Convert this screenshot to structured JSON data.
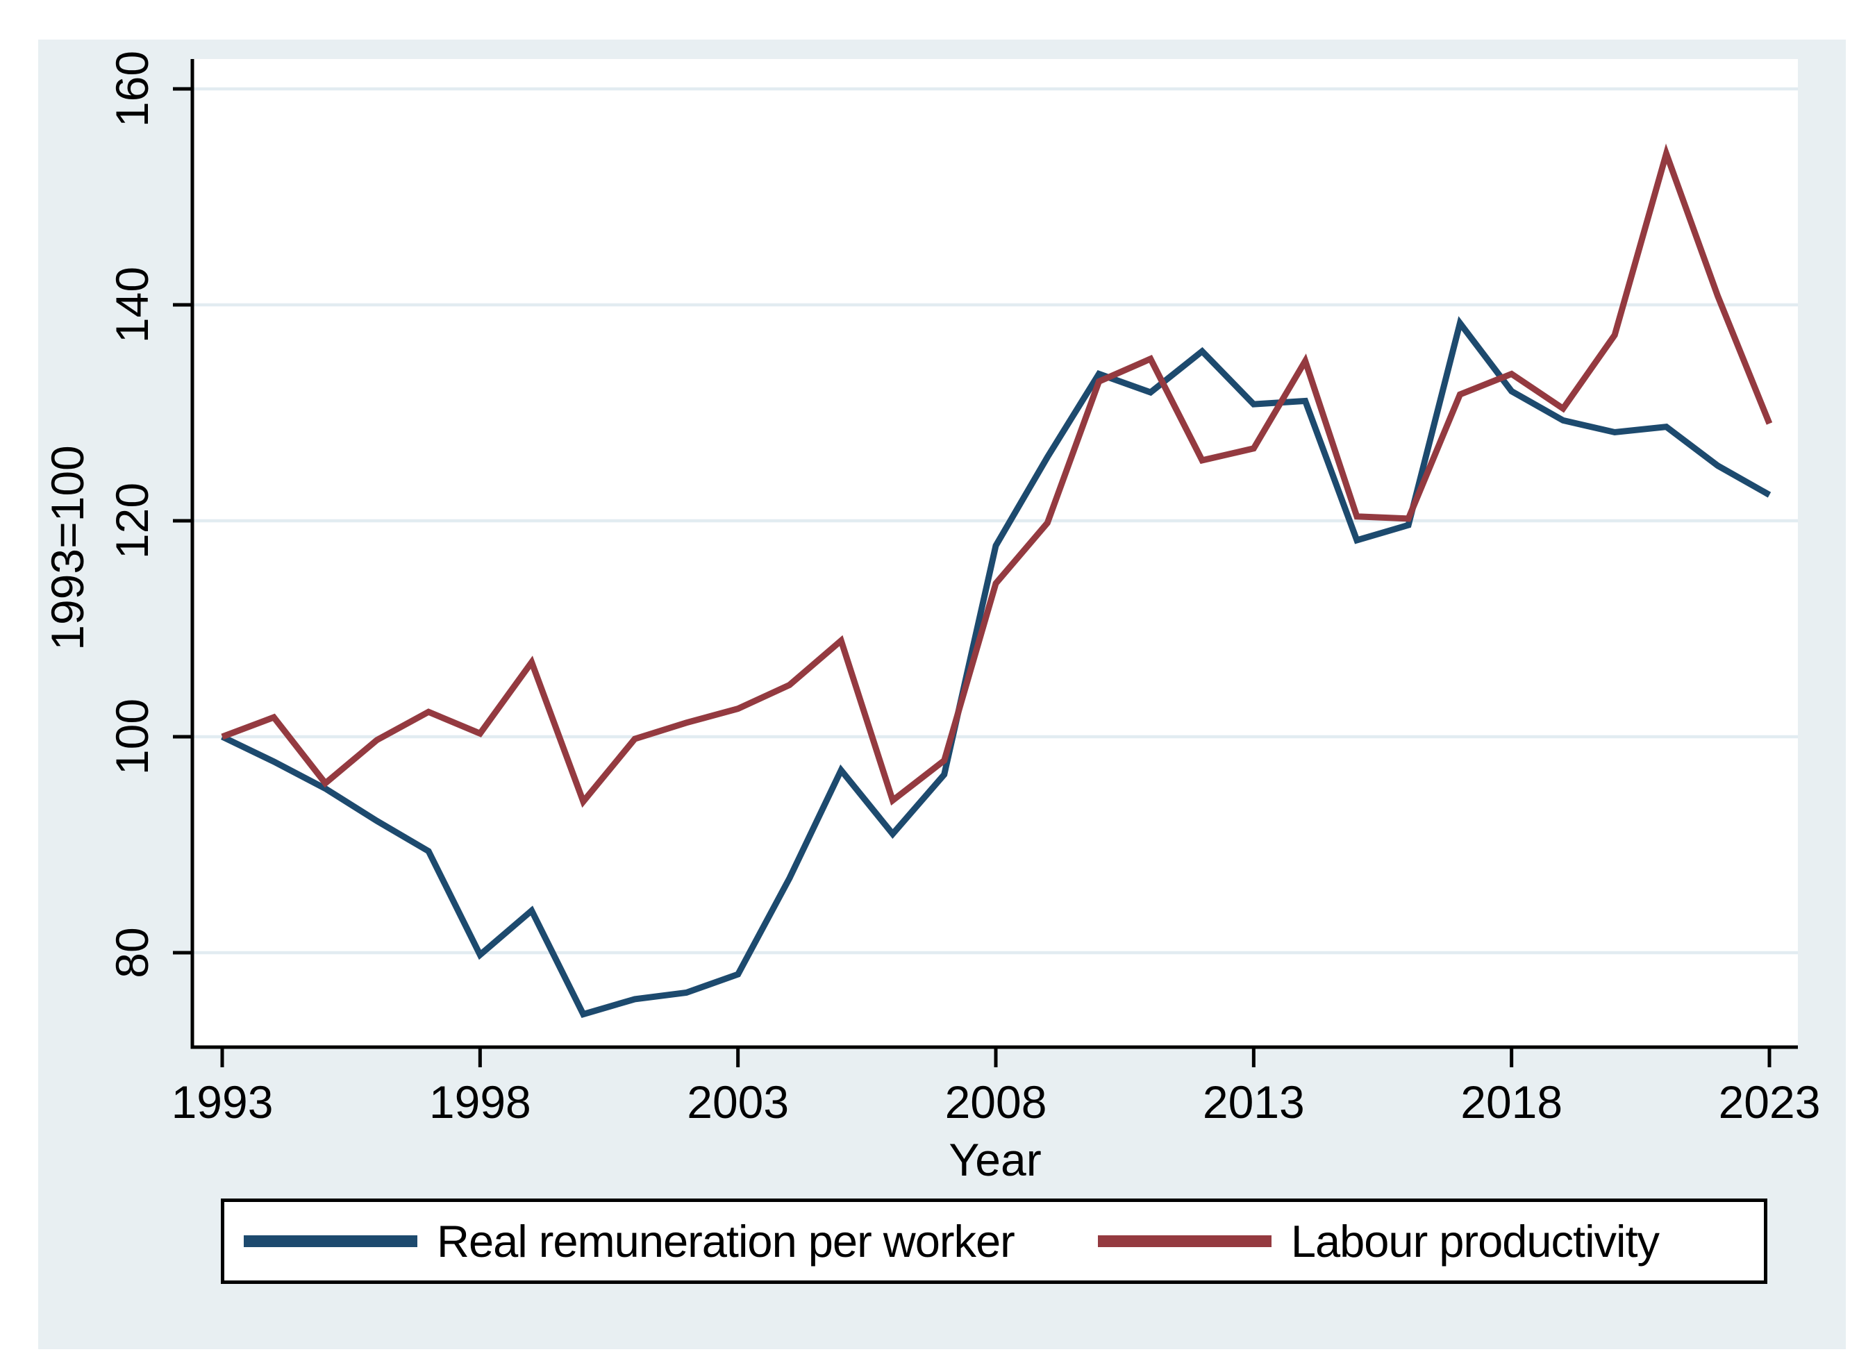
{
  "figure": {
    "background_color": "#e8eff2",
    "plot_background": "#ffffff",
    "grid_color": "#e2ecf1",
    "axis_color": "#000000",
    "legend_border_color": "#000000"
  },
  "chart_data": {
    "type": "line",
    "title": "",
    "xlabel": "Year",
    "ylabel": "1993=100",
    "grid": true,
    "legend_position": "bottom",
    "ylim": [
      71,
      163
    ],
    "xlim": [
      1993,
      2023
    ],
    "yticks": [
      80,
      100,
      120,
      140,
      160
    ],
    "xticks": [
      1993,
      1998,
      2003,
      2008,
      2013,
      2018,
      2023
    ],
    "x": [
      1993,
      1994,
      1995,
      1996,
      1997,
      1998,
      1999,
      2000,
      2001,
      2002,
      2003,
      2004,
      2005,
      2006,
      2007,
      2008,
      2009,
      2010,
      2011,
      2012,
      2013,
      2014,
      2015,
      2016,
      2017,
      2018,
      2019,
      2020,
      2021,
      2022,
      2023
    ],
    "series": [
      {
        "name": "Real remuneration per worker",
        "color": "#1d4a6e",
        "values": [
          100,
          97.7,
          95.2,
          92.2,
          89.4,
          79.8,
          83.9,
          74.3,
          75.7,
          76.3,
          78,
          86.9,
          96.9,
          91,
          96.5,
          117.7,
          125.9,
          133.6,
          131.9,
          135.7,
          130.8,
          131.1,
          118.2,
          119.6,
          138.3,
          132,
          129.3,
          128.2,
          128.7,
          125.1,
          122.4
        ]
      },
      {
        "name": "Labour productivity",
        "color": "#943a40",
        "values": [
          100,
          101.8,
          95.7,
          99.7,
          102.3,
          100.3,
          106.9,
          94,
          99.8,
          101.3,
          102.6,
          104.8,
          108.9,
          94.1,
          97.8,
          114.2,
          119.8,
          132.9,
          135,
          125.6,
          126.7,
          134.8,
          120.4,
          120.2,
          131.7,
          133.6,
          130.4,
          137.2,
          154,
          140.8,
          129
        ]
      }
    ]
  }
}
